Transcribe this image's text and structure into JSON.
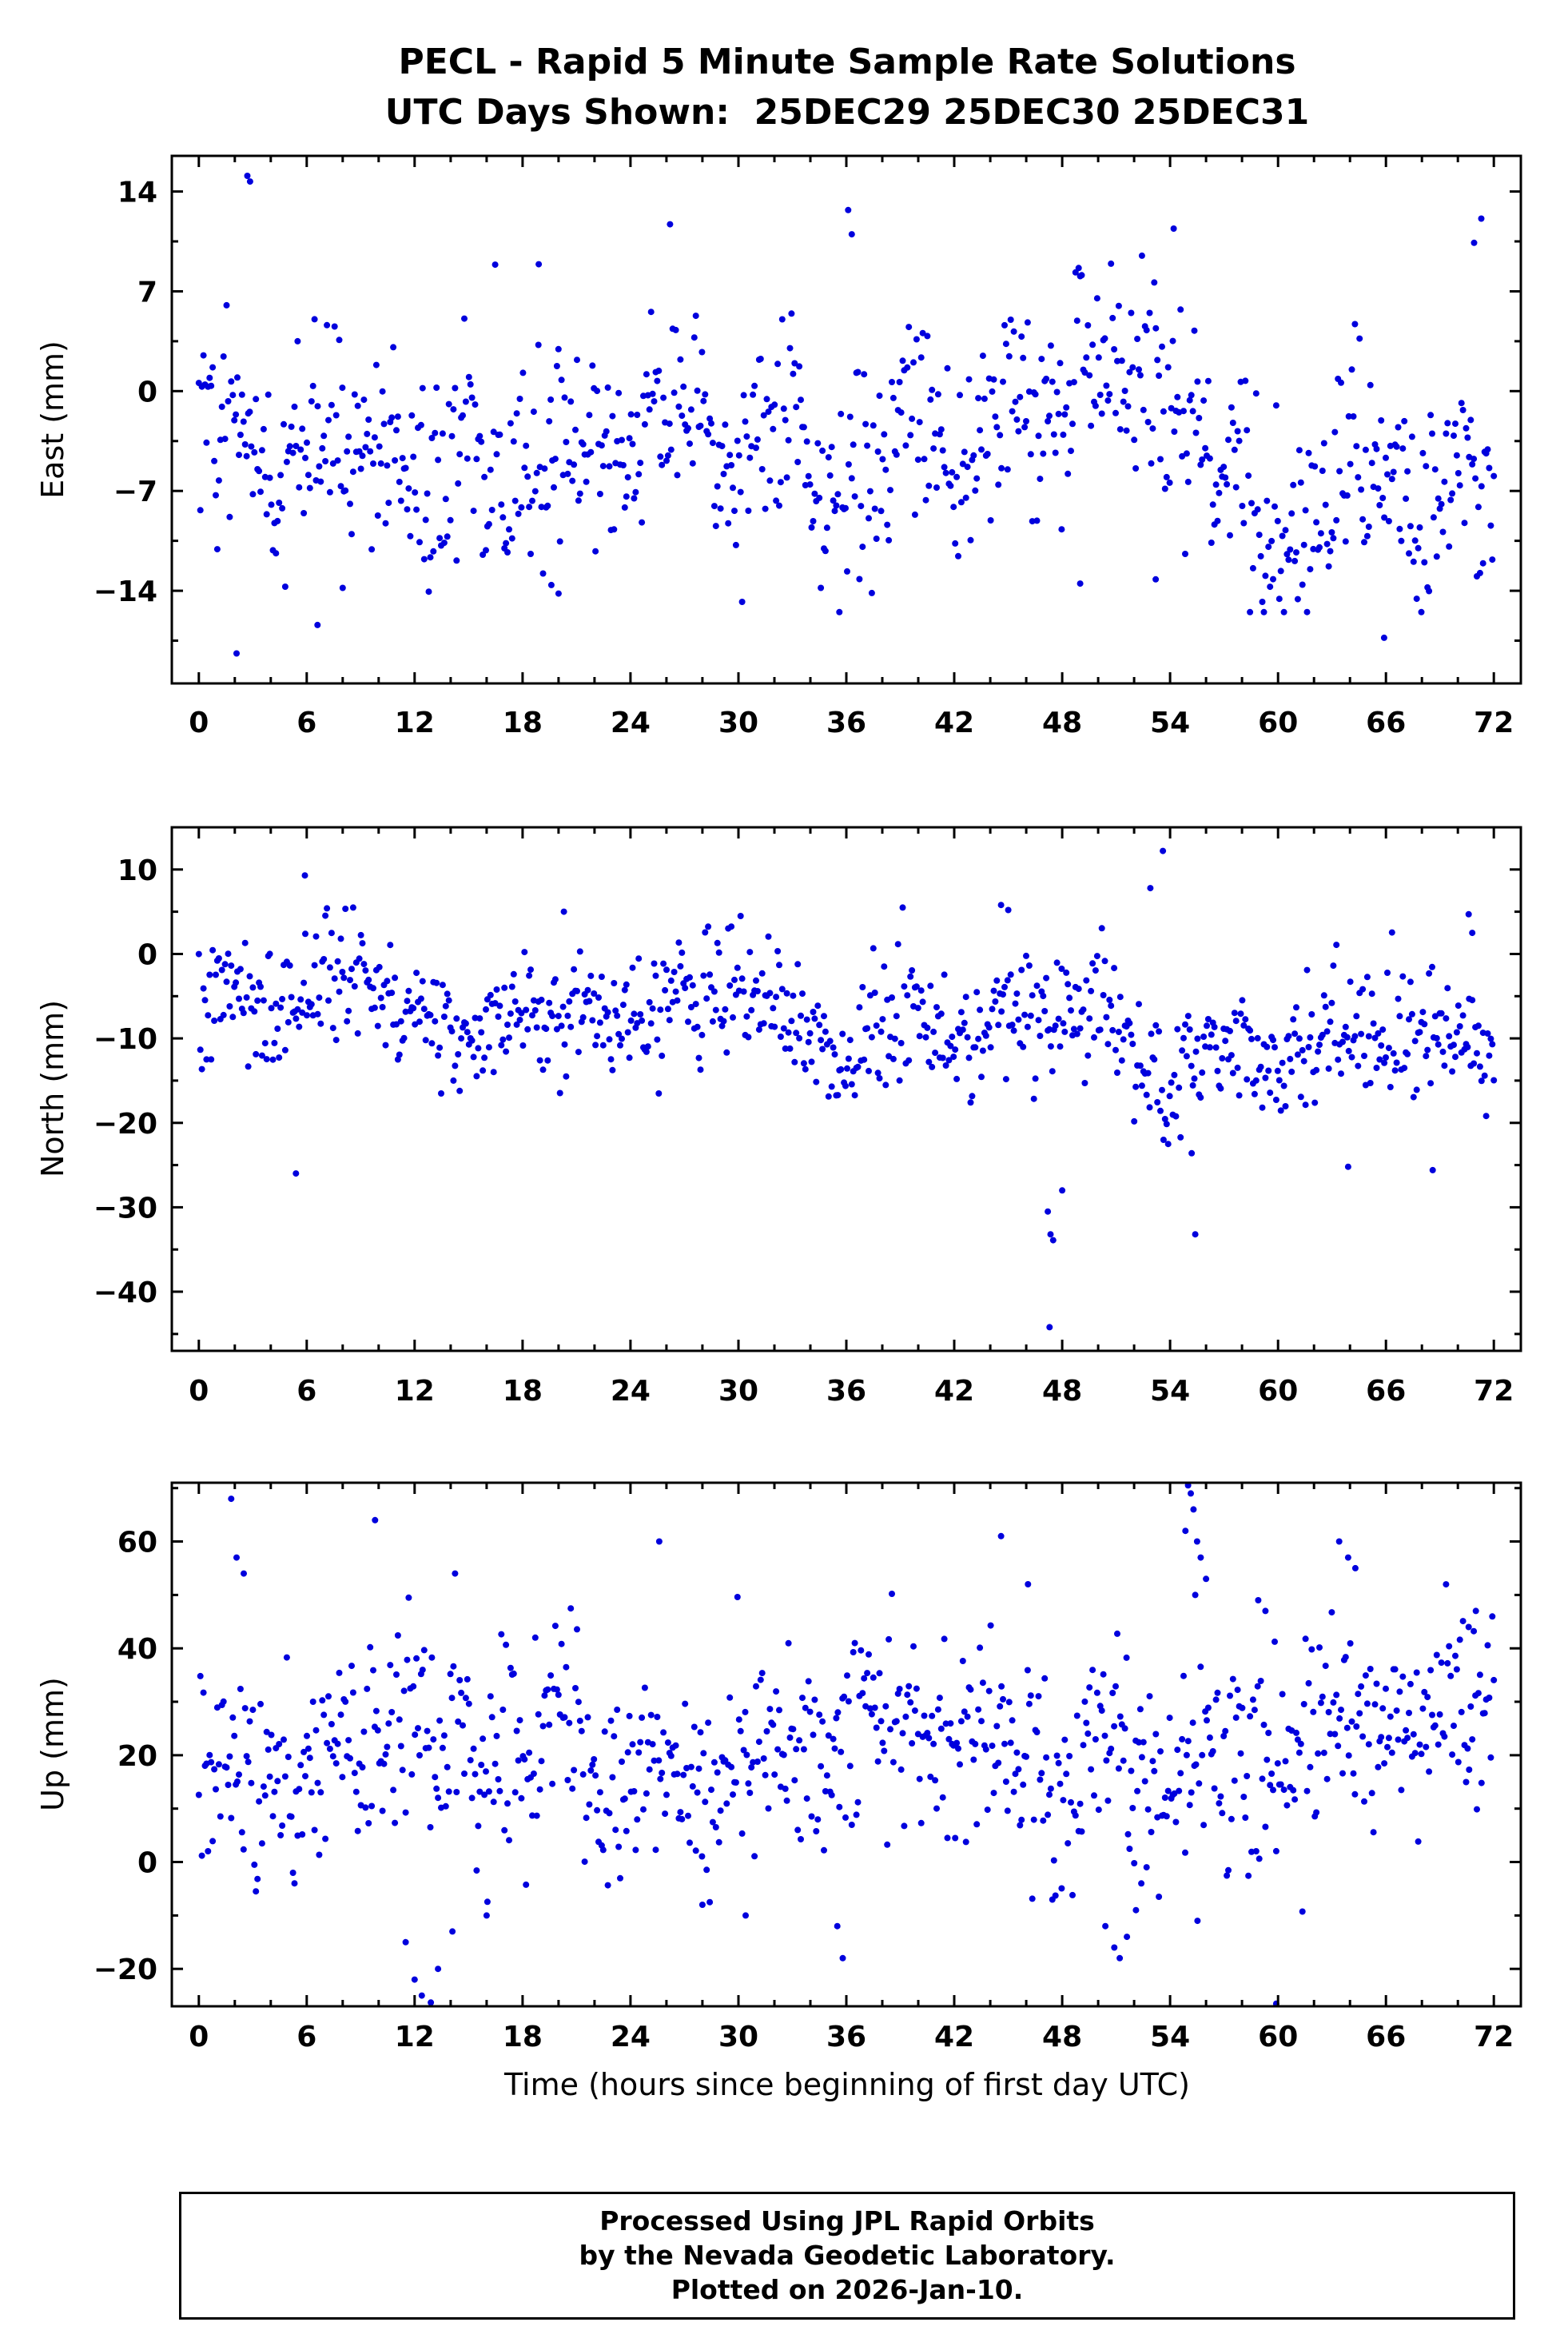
{
  "page": {
    "title_line1": "PECL - Rapid 5 Minute Sample Rate Solutions",
    "title_line2": "UTC Days Shown:  25DEC29 25DEC30 25DEC31",
    "xlabel": "Time (hours since beginning of first day UTC)",
    "footer_line1": "Processed Using JPL Rapid Orbits",
    "footer_line2": "by the Nevada Geodetic Laboratory.",
    "footer_line3": "Plotted on 2026-Jan-10.",
    "point_color": "#0000dd",
    "frame_color": "#000000"
  },
  "chart_data": [
    {
      "type": "scatter",
      "name": "east",
      "ylabel": "East (mm)",
      "x_ticks": [
        0,
        6,
        12,
        18,
        24,
        30,
        36,
        42,
        48,
        54,
        60,
        66,
        72
      ],
      "x_minor": 2,
      "y_ticks": [
        14,
        7,
        0,
        -7,
        -14
      ],
      "y_minor": 3.5,
      "x_range": [
        -1.5,
        73.5
      ],
      "y_range": [
        -20.5,
        16.5
      ],
      "n_points": 840,
      "gen": {
        "seed": 42,
        "mean": -3,
        "sd": 3.6,
        "amp24": 1.8,
        "ph24": 0.3,
        "amp6": 1.2,
        "ph6": 0.1,
        "wander": 0.3,
        "clip": [
          -15.5,
          13.0
        ]
      },
      "outliers": [
        [
          2.7,
          15.1
        ],
        [
          2.85,
          14.7
        ],
        [
          2.1,
          -18.4
        ],
        [
          6.6,
          -16.4
        ],
        [
          8.0,
          -13.8
        ],
        [
          65.9,
          -17.3
        ],
        [
          36.1,
          12.7
        ],
        [
          36.3,
          11.0
        ],
        [
          26.2,
          11.7
        ],
        [
          18.9,
          8.9
        ],
        [
          71.3,
          12.1
        ],
        [
          70.9,
          10.4
        ],
        [
          54.2,
          11.4
        ],
        [
          49.0,
          -13.5
        ],
        [
          53.2,
          -13.2
        ],
        [
          20.0,
          -14.2
        ],
        [
          19.6,
          -13.6
        ]
      ]
    },
    {
      "type": "scatter",
      "name": "north",
      "ylabel": "North (mm)",
      "x_ticks": [
        0,
        6,
        12,
        18,
        24,
        30,
        36,
        42,
        48,
        54,
        60,
        66,
        72
      ],
      "x_minor": 2,
      "y_ticks": [
        10,
        0,
        -10,
        -20,
        -30,
        -40
      ],
      "y_minor": 5,
      "x_range": [
        -1.5,
        73.5
      ],
      "y_range": [
        -47,
        15
      ],
      "n_points": 840,
      "gen": {
        "seed": 7,
        "mean": -9,
        "sd": 3.6,
        "amp24": 1.5,
        "ph24": 0.8,
        "amp6": 1.0,
        "ph6": 0.4,
        "wander": 0.3,
        "clip": [
          -22.5,
          5.5
        ]
      },
      "outliers": [
        [
          5.9,
          9.3
        ],
        [
          47.2,
          -30.5
        ],
        [
          47.35,
          -33.2
        ],
        [
          47.5,
          -33.9
        ],
        [
          47.3,
          -44.2
        ],
        [
          48.0,
          -28.0
        ],
        [
          55.4,
          -33.2
        ],
        [
          55.2,
          -23.6
        ],
        [
          53.6,
          12.2
        ],
        [
          52.9,
          7.8
        ],
        [
          70.6,
          4.7
        ],
        [
          5.4,
          -26.0
        ],
        [
          68.6,
          -25.6
        ],
        [
          63.9,
          -25.2
        ],
        [
          44.6,
          5.8
        ],
        [
          45.0,
          5.2
        ],
        [
          20.3,
          5.0
        ],
        [
          70.8,
          2.5
        ]
      ]
    },
    {
      "type": "scatter",
      "name": "up",
      "ylabel": "Up (mm)",
      "x_ticks": [
        0,
        6,
        12,
        18,
        24,
        30,
        36,
        42,
        48,
        54,
        60,
        66,
        72
      ],
      "x_minor": 2,
      "y_ticks": [
        60,
        40,
        20,
        0,
        -20
      ],
      "y_minor": 10,
      "x_range": [
        -1.5,
        73.5
      ],
      "y_range": [
        -27,
        71
      ],
      "n_points": 840,
      "gen": {
        "seed": 99,
        "mean": 21,
        "sd": 10,
        "amp24": 5,
        "ph24": 4.0,
        "amp6": 3,
        "ph6": 1.0,
        "wander": 0.55,
        "clip": [
          -11,
          54
        ]
      },
      "outliers": [
        [
          1.8,
          68
        ],
        [
          2.1,
          57
        ],
        [
          2.5,
          54
        ],
        [
          9.8,
          64
        ],
        [
          25.6,
          60
        ],
        [
          44.6,
          61
        ],
        [
          46.1,
          52
        ],
        [
          55.0,
          70.5
        ],
        [
          55.15,
          69
        ],
        [
          55.3,
          66
        ],
        [
          54.85,
          62
        ],
        [
          55.5,
          60
        ],
        [
          55.7,
          57
        ],
        [
          56.0,
          53
        ],
        [
          55.4,
          50
        ],
        [
          63.4,
          60
        ],
        [
          63.9,
          57
        ],
        [
          64.3,
          55
        ],
        [
          58.9,
          49
        ],
        [
          59.3,
          47
        ],
        [
          71.0,
          47
        ],
        [
          70.6,
          44
        ],
        [
          11.5,
          -15
        ],
        [
          12.0,
          -22
        ],
        [
          12.4,
          -25
        ],
        [
          12.9,
          -26.3
        ],
        [
          13.3,
          -20
        ],
        [
          14.1,
          -13
        ],
        [
          16.0,
          -10
        ],
        [
          35.8,
          -18
        ],
        [
          35.5,
          -12
        ],
        [
          50.4,
          -12
        ],
        [
          50.9,
          -16
        ],
        [
          51.2,
          -18
        ],
        [
          51.6,
          -14
        ],
        [
          52.1,
          -9
        ],
        [
          52.4,
          -4
        ],
        [
          59.9,
          -26.5
        ],
        [
          30.4,
          -10
        ],
        [
          28.0,
          -8
        ]
      ]
    }
  ]
}
